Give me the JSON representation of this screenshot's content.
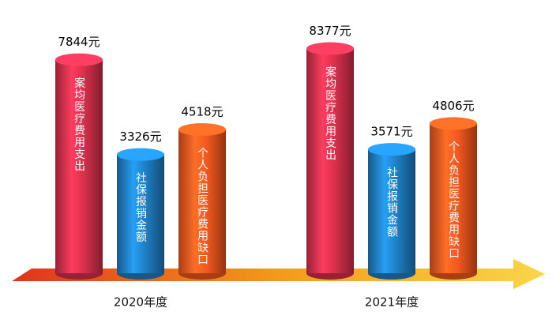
{
  "chart_data": {
    "type": "bar",
    "categories": [
      "2020年度",
      "2021年度"
    ],
    "series": [
      {
        "name": "案均医疗费用支出",
        "color": "#d8304c",
        "values": [
          7844,
          8377
        ],
        "value_labels": [
          "7844元",
          "8377元"
        ]
      },
      {
        "name": "社保报销金额",
        "color": "#1f7fc4",
        "values": [
          3326,
          3571
        ],
        "value_labels": [
          "3326元",
          "3571元"
        ]
      },
      {
        "name": "个人负担医疗费用缺口",
        "color": "#f2581e",
        "values": [
          4518,
          4806
        ],
        "value_labels": [
          "4518元",
          "4806元"
        ]
      }
    ]
  }
}
